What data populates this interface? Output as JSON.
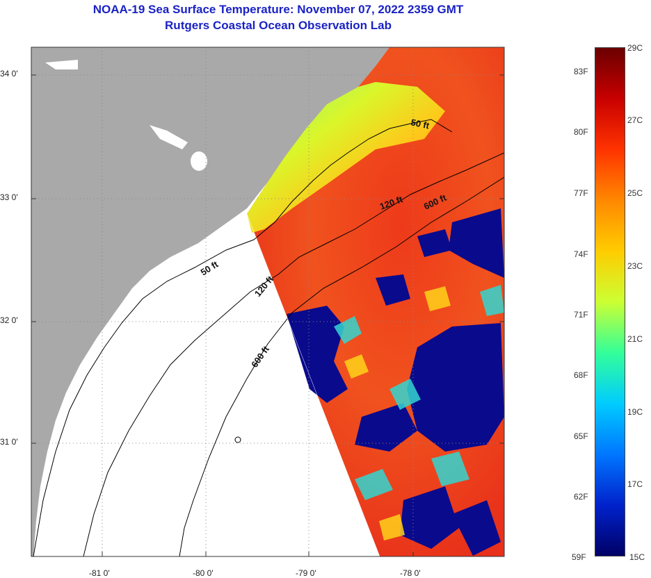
{
  "title": {
    "line1": "NOAA-19 Sea Surface Temperature:  November 07, 2022 2359 GMT",
    "line2": "Rutgers Coastal Ocean Observation Lab"
  },
  "map": {
    "lat_ticks": [
      "34 0'",
      "33 0'",
      "32 0'",
      "31 0'"
    ],
    "lon_ticks": [
      "-81 0'",
      "-80 0'",
      "-79 0'",
      "-78 0'"
    ],
    "contours": [
      {
        "label": "50 ft"
      },
      {
        "label": "120 ft"
      },
      {
        "label": "600 ft"
      },
      {
        "label": "50 ft"
      },
      {
        "label": "120 ft"
      },
      {
        "label": "600 ft"
      }
    ],
    "colors": {
      "land": "#a9a9a9",
      "no_data": "#ffffff",
      "cold": "#0a0a8c",
      "warm": "#e8331c"
    }
  },
  "colorbar": {
    "fahrenheit": [
      "83F",
      "80F",
      "77F",
      "74F",
      "71F",
      "68F",
      "65F",
      "62F",
      "59F"
    ],
    "celsius": [
      "29C",
      "27C",
      "25C",
      "23C",
      "21C",
      "19C",
      "17C",
      "15C"
    ],
    "gradient": [
      "#6b0000",
      "#c80000",
      "#ff3300",
      "#ff8800",
      "#ffcc00",
      "#ccff33",
      "#33ff99",
      "#00ccff",
      "#0077ff",
      "#0022cc",
      "#000066"
    ]
  }
}
